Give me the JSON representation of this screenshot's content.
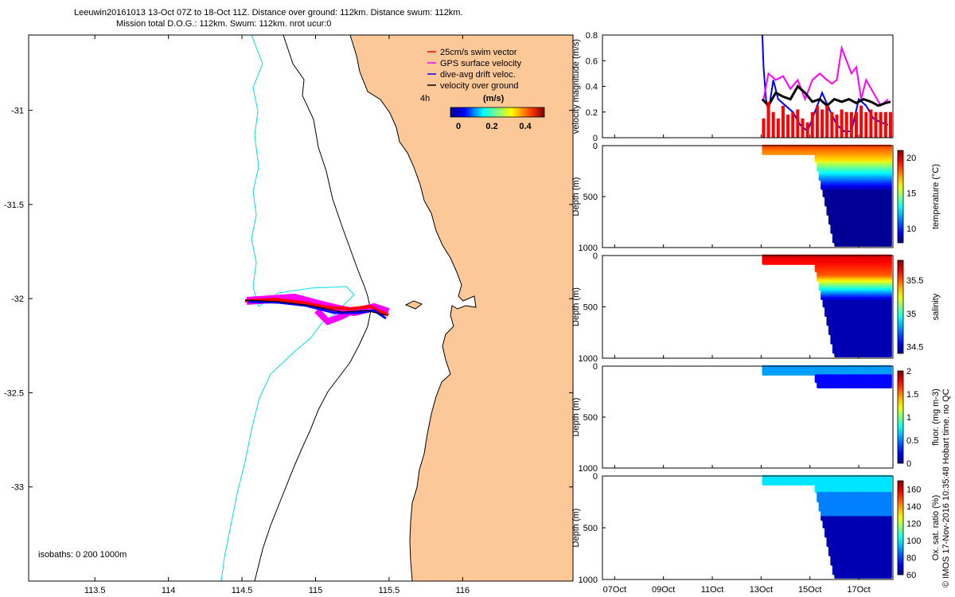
{
  "header": {
    "line1": "Leeuwin20161013 13-Oct 07Z to 18-Oct 11Z. Distance over ground: 112km. Distance swum: 112km.",
    "line2": "Mission total D.O.G.: 112km. Swum: 112km. nrot ucur:0"
  },
  "map": {
    "lon_ticks": [
      "113.5",
      "114",
      "114.5",
      "115",
      "115.5",
      "116"
    ],
    "lat_ticks": [
      "-31",
      "-31.5",
      "-32",
      "-32.5",
      "-33"
    ],
    "lon_range": [
      113.05,
      116.75
    ],
    "lat_range": [
      -33.5,
      -30.6
    ],
    "isobath_label": "isobaths: 0   200  1000m",
    "legend": [
      {
        "label": "25cm/s swim vector",
        "color": "#ff0000"
      },
      {
        "label": "GPS surface velocity",
        "color": "#ff00ff"
      },
      {
        "label": "dive-avg drift veloc.",
        "color": "#0000ff"
      },
      {
        "label": "velocity over ground",
        "color": "#000000"
      }
    ],
    "time_marker": "4h",
    "colorbar_title": "(m/s)",
    "colorbar_ticks": [
      "0",
      "0.2",
      "0.4"
    ],
    "colors": {
      "land": "#fcc898",
      "isobath_200": "#00e0e0",
      "isobath_1000": "#000000",
      "coast": "#000000"
    }
  },
  "chart_data": [
    {
      "type": "line",
      "name": "velocity",
      "ylabel": "velocity magnitude (m/s)",
      "ylim": [
        0,
        0.8
      ],
      "yticks": [
        "0",
        "0.2",
        "0.4",
        "0.6",
        "0.8"
      ],
      "series": [
        {
          "name": "dive-avg drift veloc.",
          "color": "#0000ff",
          "x": [
            13.05,
            13.1,
            13.2,
            13.3,
            13.5,
            13.7,
            14.0,
            14.3,
            14.6,
            14.9,
            15.2,
            15.5,
            15.8,
            16.1,
            16.4,
            16.7,
            17.0,
            17.3,
            17.6,
            17.9,
            18.2
          ],
          "y": [
            0.8,
            0.55,
            0.3,
            0.2,
            0.45,
            0.3,
            0.25,
            0.2,
            0.1,
            0.05,
            0.2,
            0.35,
            0.22,
            0.1,
            0.05,
            0.05,
            0.3,
            0.25,
            0.15,
            0.12,
            0.1
          ]
        },
        {
          "name": "GPS surface velocity",
          "color": "#ff00ff",
          "x": [
            13.1,
            13.3,
            13.6,
            13.9,
            14.2,
            14.5,
            14.8,
            15.1,
            15.4,
            15.7,
            15.9,
            16.1,
            16.3,
            16.5,
            16.7,
            16.9,
            17.1,
            17.3,
            17.6,
            17.9,
            18.2
          ],
          "y": [
            0.3,
            0.5,
            0.45,
            0.48,
            0.38,
            0.45,
            0.3,
            0.45,
            0.5,
            0.45,
            0.42,
            0.45,
            0.7,
            0.6,
            0.5,
            0.55,
            0.3,
            0.45,
            0.35,
            0.25,
            0.3
          ]
        },
        {
          "name": "velocity over ground",
          "color": "#000000",
          "x": [
            13.05,
            13.3,
            13.6,
            13.9,
            14.2,
            14.5,
            14.8,
            15.1,
            15.4,
            15.7,
            16.0,
            16.3,
            16.6,
            16.9,
            17.2,
            17.5,
            17.8,
            18.1,
            18.3
          ],
          "y": [
            0.3,
            0.25,
            0.35,
            0.32,
            0.3,
            0.4,
            0.35,
            0.28,
            0.3,
            0.25,
            0.3,
            0.28,
            0.3,
            0.27,
            0.3,
            0.28,
            0.25,
            0.27,
            0.28
          ]
        },
        {
          "name": "25cm/s swim vector",
          "color": "#ff0000",
          "kind": "bars",
          "x": [
            13.1,
            13.3,
            13.5,
            13.7,
            13.9,
            14.1,
            14.3,
            14.5,
            14.7,
            14.9,
            15.1,
            15.3,
            15.5,
            15.7,
            15.9,
            16.1,
            16.3,
            16.5,
            16.7,
            16.9,
            17.1,
            17.3,
            17.5,
            17.7,
            17.9,
            18.1,
            18.3
          ],
          "y": [
            0.15,
            0.28,
            0.2,
            0.15,
            0.25,
            0.18,
            0.2,
            0.22,
            0.15,
            0.12,
            0.2,
            0.25,
            0.22,
            0.25,
            0.2,
            0.18,
            0.22,
            0.2,
            0.2,
            0.2,
            0.25,
            0.2,
            0.22,
            0.2,
            0.2,
            0.2,
            0.2
          ]
        }
      ]
    },
    {
      "type": "scatter",
      "name": "temperature",
      "ylabel": "Depth (m)",
      "ylim": [
        1000,
        0
      ],
      "yticks": [
        "0",
        "500",
        "1000"
      ],
      "colorbar_label": "temperature (°C)",
      "color_range": [
        8,
        21
      ],
      "colorbar_ticks": [
        "10",
        "15",
        "20"
      ]
    },
    {
      "type": "scatter",
      "name": "salinity",
      "ylabel": "Depth (m)",
      "ylim": [
        1000,
        0
      ],
      "yticks": [
        "0",
        "500",
        "1000"
      ],
      "colorbar_label": "salinity",
      "color_range": [
        34.4,
        35.8
      ],
      "colorbar_ticks": [
        "34.5",
        "35",
        "35.5"
      ]
    },
    {
      "type": "scatter",
      "name": "fluorescence",
      "ylabel": "Depth (m)",
      "ylim": [
        1000,
        0
      ],
      "yticks": [
        "0",
        "500",
        "1000"
      ],
      "colorbar_label": "fluor. (mg m-3)",
      "color_range": [
        0,
        2
      ],
      "colorbar_ticks": [
        "0",
        "0.5",
        "1",
        "1.5",
        "2"
      ]
    },
    {
      "type": "scatter",
      "name": "oxygen",
      "ylabel": "Depth (m)",
      "ylim": [
        1000,
        0
      ],
      "yticks": [
        "0",
        "500",
        "1000"
      ],
      "colorbar_label": "Ox. sat. ratio (%)",
      "color_range": [
        60,
        170
      ],
      "colorbar_ticks": [
        "60",
        "80",
        "100",
        "120",
        "140",
        "160"
      ]
    }
  ],
  "time_axis": {
    "ticks": [
      "07Oct",
      "09Oct",
      "11Oct",
      "13Oct",
      "15Oct",
      "17Oct"
    ],
    "range": [
      6.5,
      18.4
    ]
  },
  "footer": {
    "caption": "© IMOS 17-Nov-2016 10:35:48 Hobart time. no QC"
  }
}
